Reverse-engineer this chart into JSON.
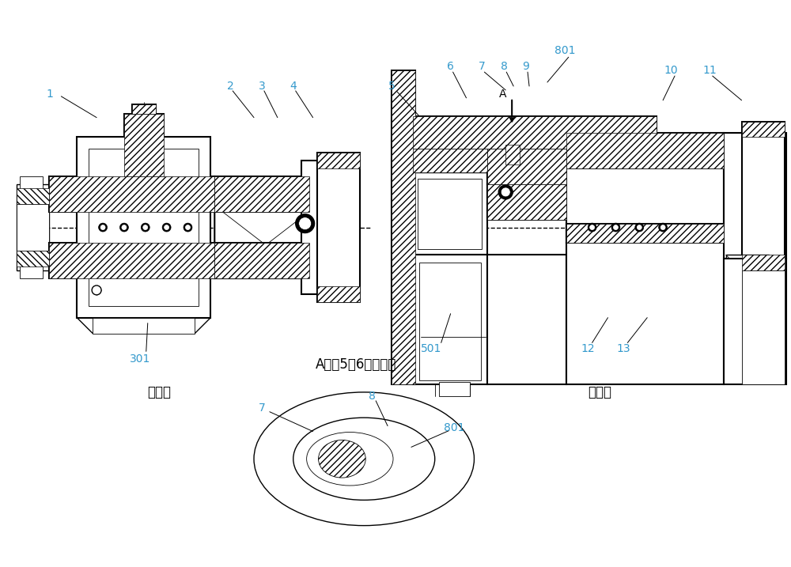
{
  "bg_color": "#ffffff",
  "line_color": "#000000",
  "label_color": "#3399cc",
  "fig_width": 10.0,
  "fig_height": 7.17,
  "label_fontsize": 10,
  "chinese_fontsize": 12,
  "left_label": "固定端",
  "right_label": "快卸端",
  "bottom_label": "A向（5、6未示出）",
  "dpi": 100
}
